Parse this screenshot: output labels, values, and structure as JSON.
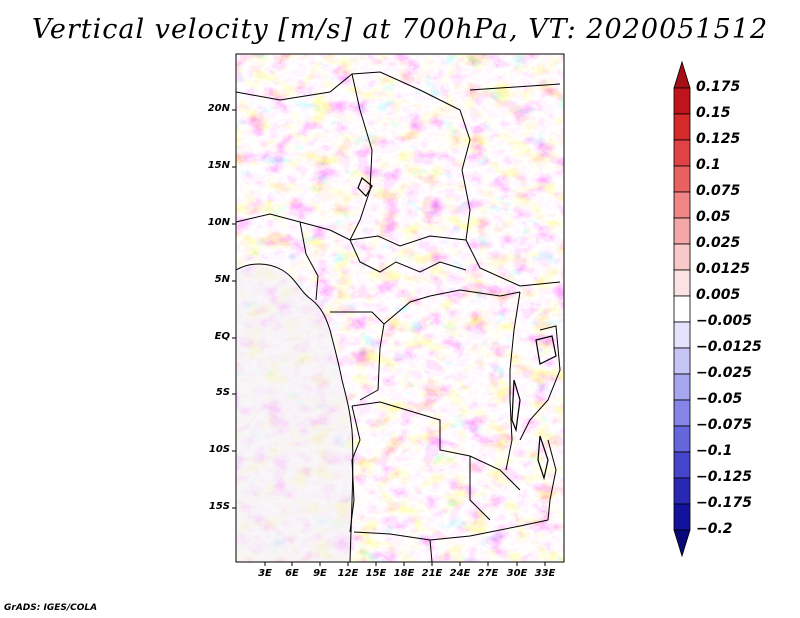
{
  "title": "Vertical velocity [m/s] at 700hPa, VT: 2020051512",
  "footer": "GrADS: IGES/COLA",
  "lat_labels": [
    "20N",
    "15N",
    "10N",
    "5N",
    "EQ",
    "5S",
    "10S",
    "15S"
  ],
  "lon_labels": [
    "3E",
    "6E",
    "9E",
    "12E",
    "15E",
    "18E",
    "21E",
    "24E",
    "27E",
    "30E",
    "33E"
  ],
  "colorbar": {
    "labels": [
      "0.175",
      "0.15",
      "0.125",
      "0.1",
      "0.075",
      "0.05",
      "0.025",
      "0.0125",
      "0.005",
      "−0.005",
      "−0.0125",
      "−0.025",
      "−0.05",
      "−0.075",
      "−0.1",
      "−0.125",
      "−0.175",
      "−0.2"
    ],
    "colors": [
      "#a50f15",
      "#c0141c",
      "#d52a2a",
      "#e04343",
      "#e86161",
      "#ef8585",
      "#f5a7a7",
      "#f9c8c8",
      "#fce3e3",
      "#ffffff",
      "#e3e3fb",
      "#c6c6f6",
      "#a6a6f0",
      "#8585e8",
      "#6565dc",
      "#4545cc",
      "#2828b4",
      "#12129c",
      "#08087a"
    ]
  }
}
